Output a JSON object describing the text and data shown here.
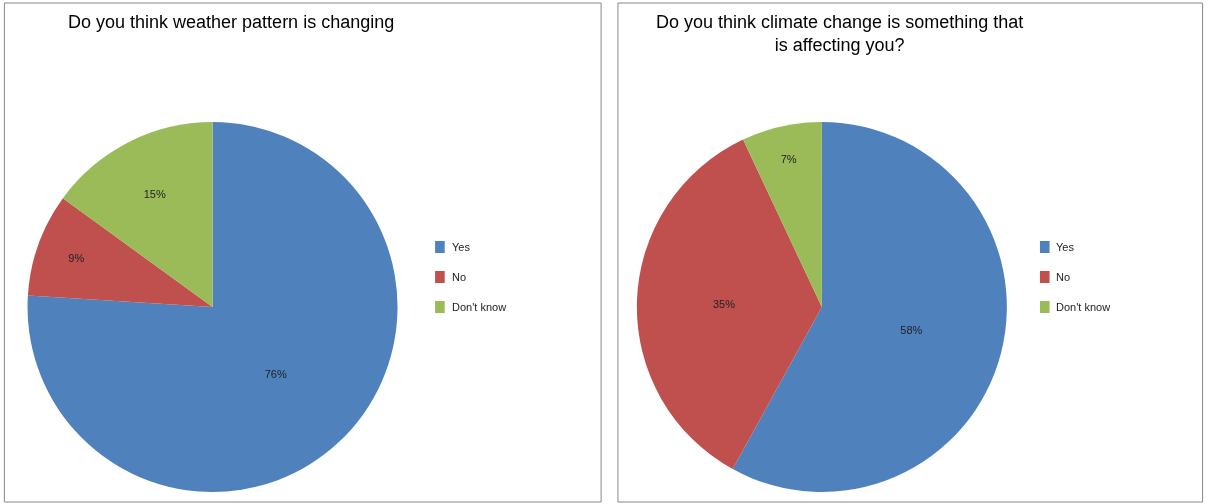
{
  "chart_data": [
    {
      "type": "pie",
      "title": "Do you think weather pattern is changing",
      "categories": [
        "Yes",
        "No",
        "Don't know"
      ],
      "values": [
        76,
        9,
        15
      ],
      "value_labels": [
        "76%",
        "9%",
        "15%"
      ],
      "colors": [
        "#4f81bd",
        "#c0504d",
        "#9bbb59"
      ],
      "legend": "right"
    },
    {
      "type": "pie",
      "title": "Do you think climate change is something that\nis affecting you?",
      "categories": [
        "Yes",
        "No",
        "Don't know"
      ],
      "values": [
        58,
        35,
        7
      ],
      "value_labels": [
        "58%",
        "35%",
        "7%"
      ],
      "colors": [
        "#4f81bd",
        "#c0504d",
        "#9bbb59"
      ],
      "legend": "right"
    }
  ]
}
